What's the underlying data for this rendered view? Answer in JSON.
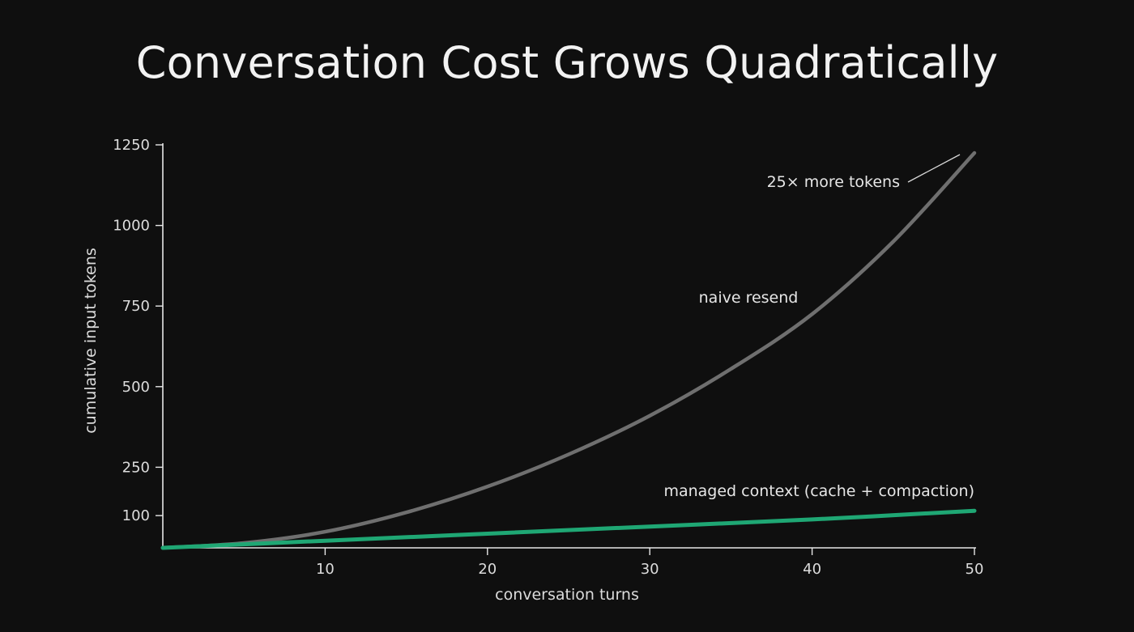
{
  "colors": {
    "background": "#0f0f0f",
    "axis": "#e6e6e6",
    "naive": "#6f6f6f",
    "managed": "#1fa774"
  },
  "chart_data": {
    "type": "line",
    "title": "Conversation Cost Grows Quadratically",
    "xlabel": "conversation turns",
    "ylabel": "cumulative input tokens",
    "xlim": [
      0,
      50
    ],
    "ylim": [
      0,
      1250
    ],
    "x_ticks": [
      10,
      20,
      30,
      40,
      50
    ],
    "y_ticks": [
      100,
      250,
      500,
      750,
      1000,
      1250
    ],
    "grid": false,
    "series": [
      {
        "name": "naive resend",
        "color": "#6f6f6f",
        "x": [
          0,
          5,
          10,
          15,
          20,
          25,
          30,
          35,
          40,
          45,
          50
        ],
        "y": [
          0,
          15,
          50,
          110,
          190,
          290,
          410,
          555,
          725,
          950,
          1225
        ]
      },
      {
        "name": "managed context (cache + compaction)",
        "color": "#1fa774",
        "x": [
          0,
          10,
          20,
          30,
          40,
          50
        ],
        "y": [
          0,
          22,
          44,
          66,
          88,
          115
        ]
      }
    ],
    "annotations": [
      {
        "text": "25× more tokens"
      }
    ]
  }
}
